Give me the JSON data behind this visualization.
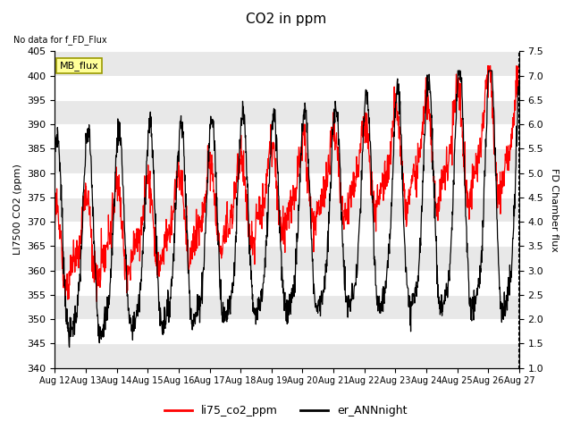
{
  "title": "CO2 in ppm",
  "no_data_text": "No data for f_FD_Flux",
  "mb_flux_label": "MB_flux",
  "ylabel_left": "LI7500 CO2 (ppm)",
  "ylabel_right": "FD Chamber flux",
  "ylim_left": [
    340,
    405
  ],
  "ylim_right": [
    1.0,
    7.5
  ],
  "xlabel_ticks": [
    "Aug 12",
    "Aug 13",
    "Aug 14",
    "Aug 15",
    "Aug 16",
    "Aug 17",
    "Aug 18",
    "Aug 19",
    "Aug 20",
    "Aug 21",
    "Aug 22",
    "Aug 23",
    "Aug 24",
    "Aug 25",
    "Aug 26",
    "Aug 27"
  ],
  "legend_labels": [
    "li75_co2_ppm",
    "er_ANNnight"
  ],
  "legend_colors": [
    "#ff0000",
    "#000000"
  ],
  "background_color": "#ffffff",
  "plot_bg_color": "#e8e8e8",
  "line_color_red": "#ff0000",
  "line_color_black": "#000000",
  "title_fontsize": 11,
  "label_fontsize": 8,
  "tick_fontsize": 8,
  "yticks_left": [
    340,
    345,
    350,
    355,
    360,
    365,
    370,
    375,
    380,
    385,
    390,
    395,
    400,
    405
  ],
  "yticks_right": [
    1.0,
    1.5,
    2.0,
    2.5,
    3.0,
    3.5,
    4.0,
    4.5,
    5.0,
    5.5,
    6.0,
    6.5,
    7.0,
    7.5
  ]
}
